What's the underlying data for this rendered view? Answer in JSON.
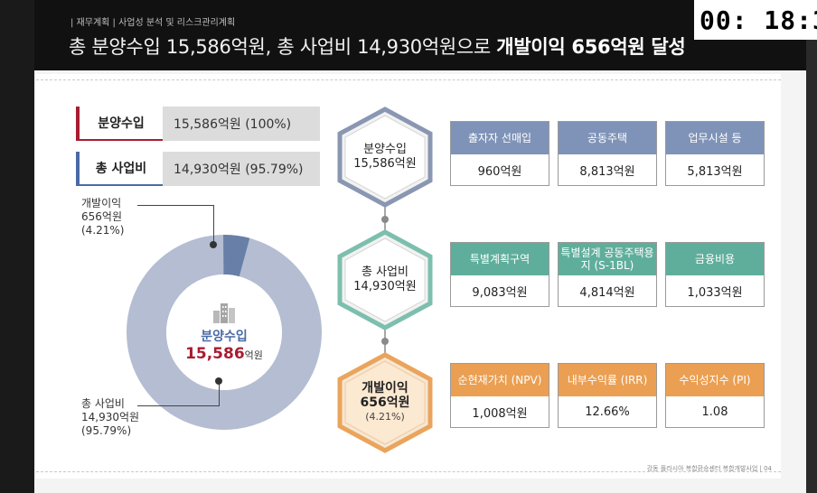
{
  "timer": "00: 18:3",
  "breadcrumb": "| 재무계획 | 사업성 분석 및 리스크관리계획",
  "headline": {
    "normal": "총 분양수입 15,586억원, 총 사업비 14,930억원으로 ",
    "bold": "개발이익 656억원 달성"
  },
  "summary": [
    {
      "label": "분양수입",
      "value": "15,586억원 (100%)"
    },
    {
      "label": "총 사업비",
      "value": "14,930억원 (95.79%)"
    }
  ],
  "donut": {
    "center_label": "분양수입",
    "center_value": "15,586",
    "center_unit": "억원",
    "profit": {
      "line1": "개발이익",
      "line2": "656억원",
      "line3": "(4.21%)",
      "percent": 4.21
    },
    "cost": {
      "line1": "총 사업비",
      "line2": "14,930억원",
      "line3": "(95.79%)",
      "percent": 95.79
    },
    "colors": {
      "cost": "#b4bdd2",
      "profit": "#687fa8"
    }
  },
  "hexagons": [
    {
      "line1": "분양수입",
      "line2": "15,586억원",
      "line3": ""
    },
    {
      "line1": "총 사업비",
      "line2": "14,930억원",
      "line3": ""
    },
    {
      "line1": "개발이익",
      "line2": "656억원",
      "line3": "(4.21%)"
    }
  ],
  "cards": {
    "revenue": [
      {
        "title": "출자자 선매입",
        "value": "960억원"
      },
      {
        "title": "공동주택",
        "value": "8,813억원"
      },
      {
        "title": "업무시설 등",
        "value": "5,813억원"
      }
    ],
    "cost": [
      {
        "title": "특별계획구역",
        "value": "9,083억원"
      },
      {
        "title": "특별설계 공동주택용지 (S-1BL)",
        "value": "4,814억원"
      },
      {
        "title": "금융비용",
        "value": "1,033억원"
      }
    ],
    "profit": [
      {
        "title": "순현재가치 (NPV)",
        "value": "1,008억원"
      },
      {
        "title": "내부수익률 (IRR)",
        "value": "12.66%"
      },
      {
        "title": "수익성지수 (PI)",
        "value": "1.08"
      }
    ]
  },
  "footer": "강동 플라시아 복합환승센터 복합개발사업 | 04",
  "colors": {
    "accent_red": "#a81c31",
    "accent_blue": "#4a6aa6",
    "green": "#5fae9c",
    "orange": "#eb9f52",
    "slate": "#7f93b8"
  }
}
